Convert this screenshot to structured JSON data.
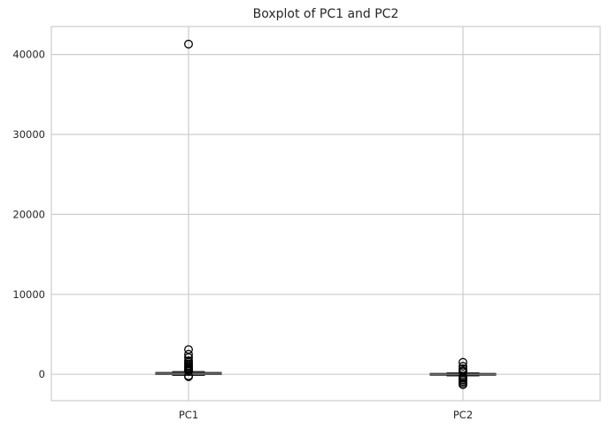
{
  "chart_data": {
    "type": "box",
    "title": "Boxplot of PC1 and PC2",
    "xlabel": "",
    "ylabel": "",
    "ylim": [
      -3300,
      43500
    ],
    "yticks": [
      0,
      10000,
      20000,
      30000,
      40000
    ],
    "grid": true,
    "categories": [
      "PC1",
      "PC2"
    ],
    "boxes": [
      {
        "name": "PC1",
        "q1": 50,
        "median": 100,
        "q3": 180,
        "whisker_low": -150,
        "whisker_high": 350,
        "outliers": [
          41300,
          3100,
          2500,
          2100,
          1700,
          1500,
          1300,
          1100,
          950,
          800,
          650,
          500,
          420,
          -200,
          -300
        ]
      },
      {
        "name": "PC2",
        "q1": -60,
        "median": 0,
        "q3": 60,
        "whisker_low": -200,
        "whisker_high": 200,
        "outliers": [
          1500,
          1000,
          700,
          450,
          300,
          -300,
          -500,
          -700,
          -900,
          -1100,
          -1300
        ]
      }
    ]
  }
}
